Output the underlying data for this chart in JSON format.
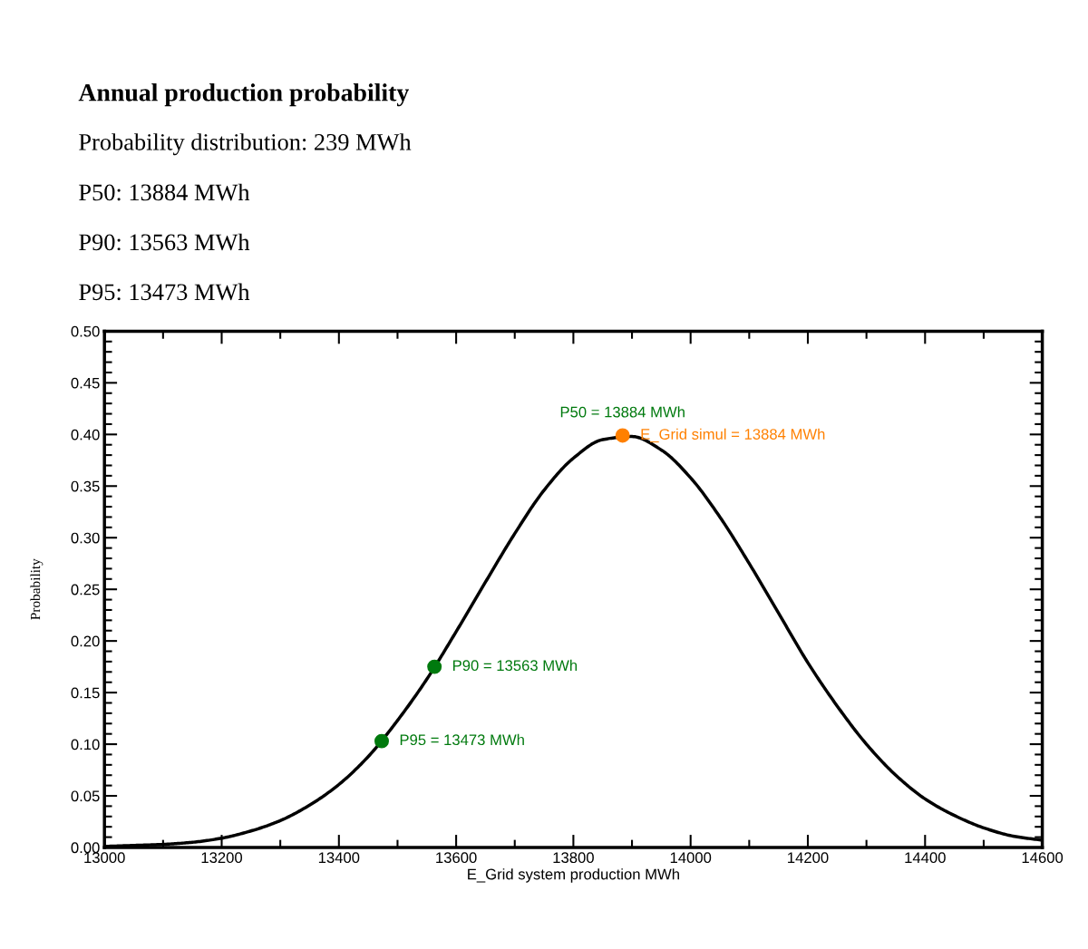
{
  "chart_data": {
    "type": "line",
    "title": "Annual production probability",
    "subtitle": "Probability distribution: 239 MWh",
    "xlabel": "E_Grid system production MWh",
    "ylabel": "Probability",
    "xlim": [
      13000,
      14600
    ],
    "xticks": [
      13000,
      13200,
      13400,
      13600,
      13800,
      14000,
      14200,
      14400,
      14600
    ],
    "ylim": [
      0,
      0.5
    ],
    "yticks": [
      {
        "value": 0,
        "label": "0.00"
      },
      0.05,
      {
        "value": 0.1,
        "label": "0.10"
      },
      0.15,
      {
        "value": 0.2,
        "label": "0.20"
      },
      0.25,
      {
        "value": 0.3,
        "label": "0.30"
      },
      0.35,
      {
        "value": 0.4,
        "label": "0.40"
      },
      0.45,
      {
        "value": 0.5,
        "label": "0.50"
      }
    ],
    "grid": false,
    "line_style": "solid",
    "series": [
      {
        "color": "#000000",
        "x": [
          13000,
          13050,
          13100,
          13150,
          13200,
          13250,
          13300,
          13350,
          13400,
          13450,
          13500,
          13550,
          13600,
          13650,
          13700,
          13750,
          13800,
          13850,
          13900,
          13950,
          14000,
          14050,
          14100,
          14150,
          14200,
          14250,
          14300,
          14350,
          14400,
          14450,
          14500,
          14550,
          14600
        ],
        "values": [
          0.001,
          0.002,
          0.003,
          0.005,
          0.009,
          0.016,
          0.026,
          0.041,
          0.061,
          0.088,
          0.123,
          0.163,
          0.209,
          0.257,
          0.304,
          0.346,
          0.377,
          0.395,
          0.398,
          0.385,
          0.358,
          0.32,
          0.275,
          0.227,
          0.179,
          0.137,
          0.1,
          0.07,
          0.047,
          0.031,
          0.019,
          0.011,
          0.007
        ]
      },
      {
        "type": "scatter",
        "color": "#007a0e",
        "marker": "circle",
        "x": [
          13473,
          13563
        ],
        "values": [
          0.103,
          0.175
        ]
      },
      {
        "type": "scatter",
        "color": "#ff8000",
        "marker": "circle",
        "x": [
          13884
        ],
        "values": [
          0.399
        ]
      }
    ],
    "annotations": [
      "P50: 13884 MWh",
      "P90: 13563 MWh",
      "P95: 13473 MWh",
      {
        "text": "P50 = 13884 MWh",
        "x": 13884,
        "y": 0.399
      },
      {
        "text": "E_Grid simul = 13884 MWh",
        "x": 13884,
        "y": 0.399
      },
      {
        "text": "P90 = 13563 MWh",
        "x": 13563,
        "y": 0.175
      },
      {
        "text": "P95 = 13473 MWh",
        "x": 13473,
        "y": 0.103
      }
    ]
  }
}
